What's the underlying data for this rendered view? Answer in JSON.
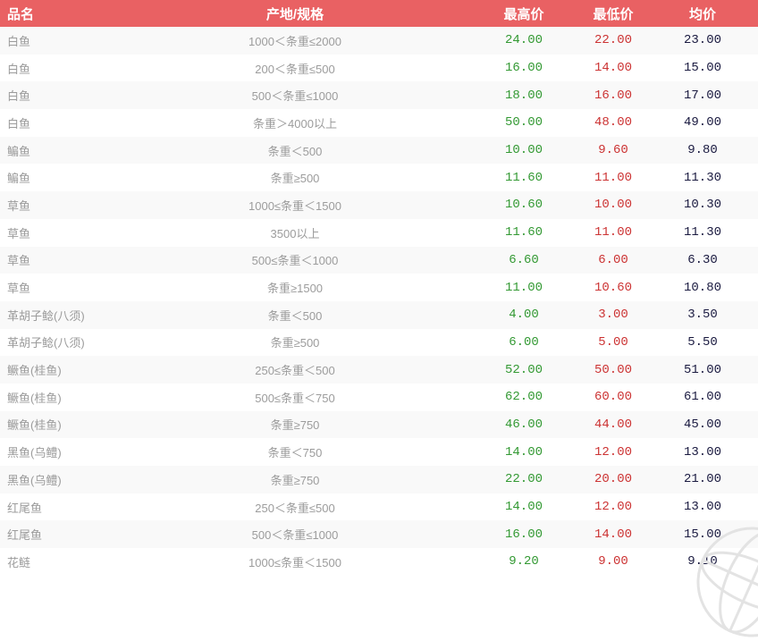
{
  "colors": {
    "header_bg": "#e96163",
    "high_price": "#339933",
    "low_price": "#cc3333",
    "avg_price": "#1a1a40",
    "label_gray": "#9c9c9c",
    "stripe": "#f9f9f9"
  },
  "watermark": {
    "icon": "globe-icon"
  },
  "table": {
    "columns": {
      "name": "品名",
      "spec": "产地/规格",
      "high": "最高价",
      "low": "最低价",
      "avg": "均价"
    },
    "rows": [
      {
        "name": "白鱼",
        "spec": "1000＜条重≤2000",
        "high": "24.00",
        "low": "22.00",
        "avg": "23.00"
      },
      {
        "name": "白鱼",
        "spec": "200＜条重≤500",
        "high": "16.00",
        "low": "14.00",
        "avg": "15.00"
      },
      {
        "name": "白鱼",
        "spec": "500＜条重≤1000",
        "high": "18.00",
        "low": "16.00",
        "avg": "17.00"
      },
      {
        "name": "白鱼",
        "spec": "条重＞4000以上",
        "high": "50.00",
        "low": "48.00",
        "avg": "49.00"
      },
      {
        "name": "鳊鱼",
        "spec": "条重＜500",
        "high": "10.00",
        "low": "9.60",
        "avg": "9.80"
      },
      {
        "name": "鳊鱼",
        "spec": "条重≥500",
        "high": "11.60",
        "low": "11.00",
        "avg": "11.30"
      },
      {
        "name": "草鱼",
        "spec": "1000≤条重＜1500",
        "high": "10.60",
        "low": "10.00",
        "avg": "10.30"
      },
      {
        "name": "草鱼",
        "spec": "3500以上",
        "high": "11.60",
        "low": "11.00",
        "avg": "11.30"
      },
      {
        "name": "草鱼",
        "spec": "500≤条重＜1000",
        "high": "6.60",
        "low": "6.00",
        "avg": "6.30"
      },
      {
        "name": "草鱼",
        "spec": "条重≥1500",
        "high": "11.00",
        "low": "10.60",
        "avg": "10.80"
      },
      {
        "name": "革胡子鲶(八须)",
        "spec": "条重＜500",
        "high": "4.00",
        "low": "3.00",
        "avg": "3.50"
      },
      {
        "name": "革胡子鲶(八须)",
        "spec": "条重≥500",
        "high": "6.00",
        "low": "5.00",
        "avg": "5.50"
      },
      {
        "name": "鳜鱼(桂鱼)",
        "spec": "250≤条重＜500",
        "high": "52.00",
        "low": "50.00",
        "avg": "51.00"
      },
      {
        "name": "鳜鱼(桂鱼)",
        "spec": "500≤条重＜750",
        "high": "62.00",
        "low": "60.00",
        "avg": "61.00"
      },
      {
        "name": "鳜鱼(桂鱼)",
        "spec": "条重≥750",
        "high": "46.00",
        "low": "44.00",
        "avg": "45.00"
      },
      {
        "name": "黑鱼(乌鳢)",
        "spec": "条重＜750",
        "high": "14.00",
        "low": "12.00",
        "avg": "13.00"
      },
      {
        "name": "黑鱼(乌鳢)",
        "spec": "条重≥750",
        "high": "22.00",
        "low": "20.00",
        "avg": "21.00"
      },
      {
        "name": "红尾鱼",
        "spec": "250＜条重≤500",
        "high": "14.00",
        "low": "12.00",
        "avg": "13.00"
      },
      {
        "name": "红尾鱼",
        "spec": "500＜条重≤1000",
        "high": "16.00",
        "low": "14.00",
        "avg": "15.00"
      },
      {
        "name": "花鲢",
        "spec": "1000≤条重＜1500",
        "high": "9.20",
        "low": "9.00",
        "avg": "9.10"
      }
    ]
  }
}
